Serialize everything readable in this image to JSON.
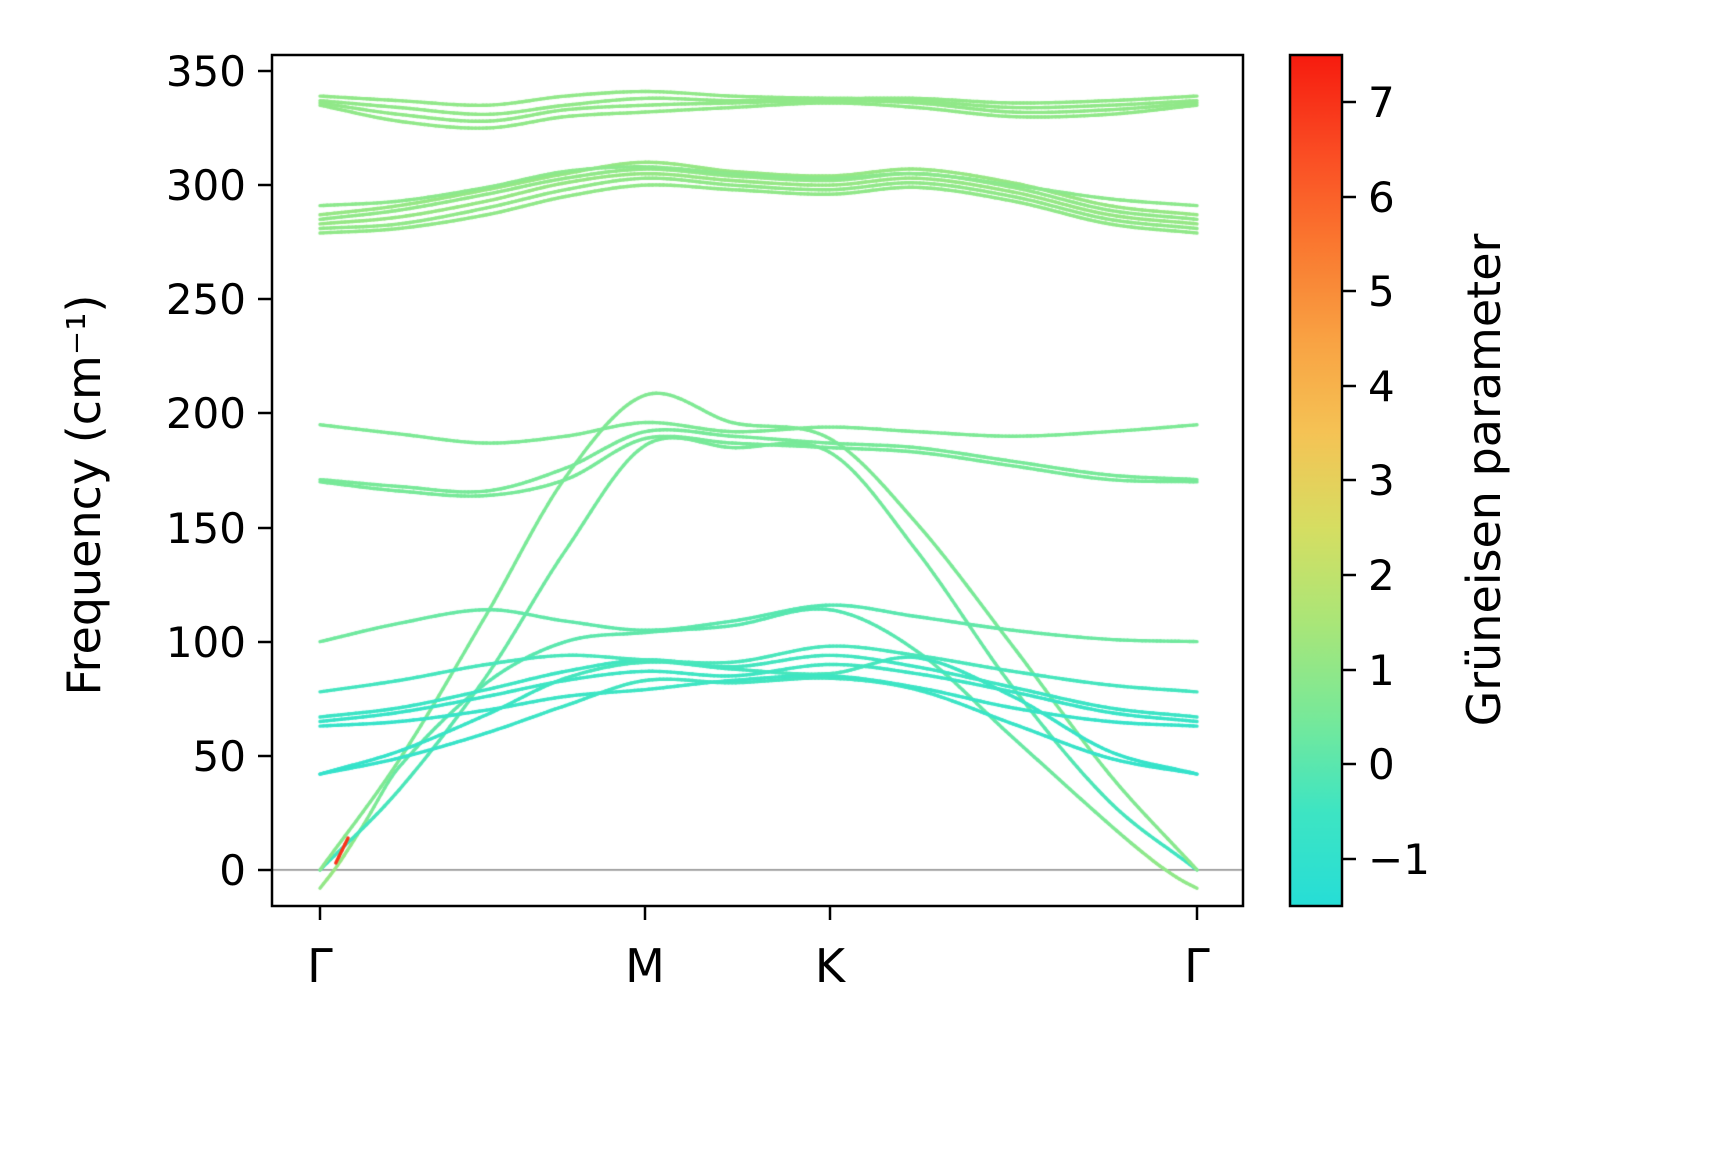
{
  "figure": {
    "background": "#ffffff",
    "frame_color": "#000000"
  },
  "chart_data": {
    "type": "line",
    "title": "",
    "xlabel": "",
    "ylabel": "Frequency (cm⁻¹)",
    "x_tick_labels": [
      "Γ",
      "M",
      "K",
      "Γ"
    ],
    "x_tick_positions": [
      0,
      0.371,
      0.581,
      1
    ],
    "y_ticks": [
      0,
      50,
      100,
      150,
      200,
      250,
      300,
      350
    ],
    "y_tick_labels": [
      "0",
      "50",
      "100",
      "150",
      "200",
      "250",
      "300",
      "350"
    ],
    "ylim": [
      -15.8,
      357
    ],
    "grid": false,
    "legend": "none",
    "zero_line": {
      "y": 0,
      "color": "#999999"
    },
    "colorbar": {
      "label": "Grüneisen parameter",
      "ticks": [
        7,
        6,
        5,
        4,
        3,
        2,
        1,
        0,
        -1
      ],
      "tick_labels": [
        "7",
        "6",
        "5",
        "4",
        "3",
        "2",
        "1",
        "0",
        "−1"
      ],
      "vmin": -1.5,
      "vmax": 7.5,
      "stops": [
        {
          "v": -1.5,
          "c": [
            38,
            222,
            215
          ]
        },
        {
          "v": -0.5,
          "c": [
            62,
            229,
            195
          ]
        },
        {
          "v": 0.5,
          "c": [
            120,
            233,
            153
          ]
        },
        {
          "v": 1.5,
          "c": [
            170,
            230,
            120
          ]
        },
        {
          "v": 2.5,
          "c": [
            214,
            222,
            98
          ]
        },
        {
          "v": 3.5,
          "c": [
            245,
            195,
            85
          ]
        },
        {
          "v": 4.5,
          "c": [
            249,
            162,
            67
          ]
        },
        {
          "v": 5.5,
          "c": [
            250,
            120,
            48
          ]
        },
        {
          "v": 6.5,
          "c": [
            250,
            75,
            35
          ]
        },
        {
          "v": 7.5,
          "c": [
            247,
            28,
            15
          ]
        }
      ]
    },
    "bands": [
      {
        "name": "za-acoustic",
        "u": [
          0,
          0.02,
          0.05,
          0.09,
          0.19,
          0.28,
          0.371,
          0.47,
          0.581,
          0.68,
          0.79,
          0.9,
          0.95,
          0.98,
          1
        ],
        "f": [
          -8,
          2,
          20,
          45,
          82,
          100,
          104,
          107,
          114,
          96,
          58,
          20,
          4,
          -4,
          -8
        ],
        "g": [
          1,
          1.2,
          0.8,
          0.2,
          0,
          0,
          0.1,
          0,
          -0.1,
          0,
          0.2,
          0.6,
          1,
          1,
          1
        ]
      },
      {
        "name": "ta-acoustic",
        "u": [
          0,
          0.09,
          0.19,
          0.28,
          0.371,
          0.47,
          0.581,
          0.68,
          0.79,
          0.9,
          1
        ],
        "f": [
          0,
          35,
          85,
          140,
          186,
          185,
          183,
          140,
          80,
          30,
          0
        ],
        "g": [
          -0.5,
          -0.3,
          0.2,
          0.4,
          0.5,
          0.5,
          0.5,
          0.4,
          0.2,
          -0.3,
          -0.5
        ]
      },
      {
        "name": "la-acoustic",
        "u": [
          0,
          0.09,
          0.19,
          0.28,
          0.371,
          0.47,
          0.581,
          0.68,
          0.79,
          0.9,
          1
        ],
        "f": [
          0,
          48,
          112,
          172,
          208,
          196,
          189,
          152,
          98,
          42,
          0
        ],
        "g": [
          0.9,
          0.6,
          0.5,
          0.6,
          0.7,
          0.6,
          0.6,
          0.6,
          0.5,
          0.6,
          0.9
        ]
      },
      {
        "name": "optical-42a",
        "u": [
          0,
          0.09,
          0.19,
          0.28,
          0.371,
          0.47,
          0.581,
          0.68,
          0.79,
          0.9,
          1
        ],
        "f": [
          42,
          52,
          68,
          84,
          91,
          88,
          86,
          93,
          76,
          52,
          42
        ],
        "g": [
          -0.9,
          -0.8,
          -0.6,
          -0.4,
          -0.3,
          -0.4,
          -0.3,
          -0.4,
          -0.6,
          -0.8,
          -0.9
        ]
      },
      {
        "name": "optical-42b",
        "u": [
          0,
          0.09,
          0.19,
          0.28,
          0.371,
          0.47,
          0.581,
          0.68,
          0.79,
          0.9,
          1
        ],
        "f": [
          42,
          49,
          60,
          72,
          83,
          82,
          84,
          79,
          64,
          49,
          42
        ],
        "g": [
          -0.9,
          -0.8,
          -0.7,
          -0.5,
          -0.4,
          -0.4,
          -0.4,
          -0.5,
          -0.7,
          -0.8,
          -0.9
        ]
      },
      {
        "name": "optical-63",
        "u": [
          0,
          0.09,
          0.19,
          0.28,
          0.371,
          0.47,
          0.581,
          0.68,
          0.79,
          0.9,
          1
        ],
        "f": [
          63,
          65,
          70,
          76,
          79,
          83,
          85,
          80,
          71,
          65,
          63
        ],
        "g": [
          -0.8,
          -0.8,
          -0.7,
          -0.6,
          -0.5,
          -0.5,
          -0.5,
          -0.6,
          -0.7,
          -0.8,
          -0.8
        ]
      },
      {
        "name": "optical-65",
        "u": [
          0,
          0.09,
          0.19,
          0.28,
          0.371,
          0.47,
          0.581,
          0.68,
          0.79,
          0.9,
          1
        ],
        "f": [
          65,
          69,
          76,
          83,
          87,
          85,
          90,
          86,
          78,
          69,
          65
        ],
        "g": [
          -0.7,
          -0.7,
          -0.6,
          -0.5,
          -0.5,
          -0.5,
          -0.4,
          -0.5,
          -0.6,
          -0.7,
          -0.7
        ]
      },
      {
        "name": "optical-67",
        "u": [
          0,
          0.09,
          0.19,
          0.28,
          0.371,
          0.47,
          0.581,
          0.68,
          0.79,
          0.9,
          1
        ],
        "f": [
          67,
          71,
          79,
          87,
          92,
          89,
          94,
          89,
          80,
          71,
          67
        ],
        "g": [
          -0.6,
          -0.6,
          -0.5,
          -0.5,
          -0.4,
          -0.4,
          -0.4,
          -0.5,
          -0.5,
          -0.6,
          -0.6
        ]
      },
      {
        "name": "optical-78",
        "u": [
          0,
          0.09,
          0.19,
          0.28,
          0.371,
          0.47,
          0.581,
          0.68,
          0.79,
          0.9,
          1
        ],
        "f": [
          78,
          83,
          90,
          94,
          92,
          91,
          98,
          94,
          87,
          81,
          78
        ],
        "g": [
          -0.4,
          -0.4,
          -0.3,
          -0.3,
          -0.3,
          -0.3,
          -0.3,
          -0.3,
          -0.3,
          -0.4,
          -0.4
        ]
      },
      {
        "name": "optical-100",
        "u": [
          0,
          0.09,
          0.19,
          0.28,
          0.371,
          0.47,
          0.581,
          0.68,
          0.79,
          0.9,
          1
        ],
        "f": [
          100,
          108,
          114,
          109,
          105,
          109,
          116,
          111,
          105,
          101,
          100
        ],
        "g": [
          0.4,
          0.3,
          0.2,
          0.1,
          0.1,
          0,
          -0.1,
          0,
          0.2,
          0.3,
          0.4
        ]
      },
      {
        "name": "optical-170a",
        "u": [
          0,
          0.09,
          0.19,
          0.28,
          0.371,
          0.47,
          0.581,
          0.68,
          0.79,
          0.9,
          1
        ],
        "f": [
          170,
          166,
          164,
          171,
          189,
          187,
          185,
          183,
          177,
          171,
          170
        ],
        "g": [
          0.5,
          0.5,
          0.5,
          0.5,
          0.5,
          0.5,
          0.5,
          0.5,
          0.5,
          0.5,
          0.5
        ]
      },
      {
        "name": "optical-170b",
        "u": [
          0,
          0.09,
          0.19,
          0.28,
          0.371,
          0.47,
          0.581,
          0.68,
          0.79,
          0.9,
          1
        ],
        "f": [
          171,
          168,
          166,
          176,
          192,
          190,
          187,
          185,
          179,
          173,
          171
        ],
        "g": [
          0.5,
          0.5,
          0.5,
          0.5,
          0.5,
          0.5,
          0.5,
          0.5,
          0.5,
          0.5,
          0.5
        ]
      },
      {
        "name": "optical-195",
        "u": [
          0,
          0.09,
          0.19,
          0.28,
          0.371,
          0.47,
          0.581,
          0.68,
          0.79,
          0.9,
          1
        ],
        "f": [
          195,
          191,
          187,
          190,
          196,
          192,
          194,
          192,
          190,
          192,
          195
        ],
        "g": [
          0.6,
          0.6,
          0.6,
          0.6,
          0.6,
          0.6,
          0.6,
          0.6,
          0.6,
          0.6,
          0.6
        ]
      },
      {
        "name": "optical-279",
        "u": [
          0,
          0.09,
          0.19,
          0.28,
          0.371,
          0.47,
          0.581,
          0.68,
          0.79,
          0.9,
          1
        ],
        "f": [
          279,
          281,
          287,
          295,
          300,
          298,
          296,
          299,
          293,
          283,
          279
        ],
        "g": [
          1,
          1,
          1,
          1,
          1,
          1,
          1,
          1,
          1,
          1,
          1
        ]
      },
      {
        "name": "optical-281",
        "u": [
          0,
          0.09,
          0.19,
          0.28,
          0.371,
          0.47,
          0.581,
          0.68,
          0.79,
          0.9,
          1
        ],
        "f": [
          281,
          283,
          290,
          298,
          303,
          300,
          298,
          301,
          295,
          285,
          281
        ],
        "g": [
          1,
          1,
          1,
          1,
          1,
          1,
          1,
          1,
          1,
          1,
          1
        ]
      },
      {
        "name": "optical-283",
        "u": [
          0,
          0.09,
          0.19,
          0.28,
          0.371,
          0.47,
          0.581,
          0.68,
          0.79,
          0.9,
          1
        ],
        "f": [
          283,
          286,
          293,
          301,
          305,
          302,
          300,
          303,
          297,
          287,
          283
        ],
        "g": [
          1.1,
          1.1,
          1.1,
          1.1,
          1.1,
          1.1,
          1.1,
          1.1,
          1.1,
          1.1,
          1.1
        ]
      },
      {
        "name": "optical-285",
        "u": [
          0,
          0.09,
          0.19,
          0.28,
          0.371,
          0.47,
          0.581,
          0.68,
          0.79,
          0.9,
          1
        ],
        "f": [
          285,
          289,
          296,
          303,
          307,
          304,
          302,
          305,
          299,
          289,
          285
        ],
        "g": [
          1,
          1,
          1,
          1,
          1,
          1,
          1,
          1,
          1,
          1,
          1
        ]
      },
      {
        "name": "optical-287",
        "u": [
          0,
          0.09,
          0.19,
          0.28,
          0.371,
          0.47,
          0.581,
          0.68,
          0.79,
          0.9,
          1
        ],
        "f": [
          287,
          291,
          298,
          305,
          310,
          306,
          304,
          307,
          301,
          291,
          287
        ],
        "g": [
          1.1,
          1.1,
          1.1,
          1.1,
          1.1,
          1.1,
          1.1,
          1.1,
          1.1,
          1.1,
          1.1
        ]
      },
      {
        "name": "optical-291",
        "u": [
          0,
          0.09,
          0.19,
          0.28,
          0.371,
          0.47,
          0.581,
          0.68,
          0.79,
          0.9,
          1
        ],
        "f": [
          291,
          293,
          299,
          306,
          308,
          305,
          303,
          305,
          300,
          294,
          291
        ],
        "g": [
          0.9,
          0.9,
          0.9,
          0.9,
          0.9,
          0.9,
          0.9,
          0.9,
          0.9,
          0.9,
          0.9
        ]
      },
      {
        "name": "optical-335",
        "u": [
          0,
          0.09,
          0.19,
          0.28,
          0.371,
          0.47,
          0.581,
          0.68,
          0.79,
          0.9,
          1
        ],
        "f": [
          335,
          328,
          325,
          330,
          332,
          334,
          336,
          334,
          330,
          331,
          335
        ],
        "g": [
          1,
          1,
          1,
          1,
          1,
          1,
          1,
          1,
          1,
          1,
          1
        ]
      },
      {
        "name": "optical-336",
        "u": [
          0,
          0.09,
          0.19,
          0.28,
          0.371,
          0.47,
          0.581,
          0.68,
          0.79,
          0.9,
          1
        ],
        "f": [
          336,
          331,
          328,
          333,
          335,
          336,
          337,
          336,
          332,
          333,
          336
        ],
        "g": [
          1,
          1,
          1,
          1,
          1,
          1,
          1,
          1,
          1,
          1,
          1
        ]
      },
      {
        "name": "optical-337",
        "u": [
          0,
          0.09,
          0.19,
          0.28,
          0.371,
          0.47,
          0.581,
          0.68,
          0.79,
          0.9,
          1
        ],
        "f": [
          337,
          334,
          331,
          335,
          338,
          337,
          338,
          337,
          334,
          335,
          337
        ],
        "g": [
          1,
          1,
          1,
          1,
          1,
          1,
          1,
          1,
          1,
          1,
          1
        ]
      },
      {
        "name": "optical-339",
        "u": [
          0,
          0.09,
          0.19,
          0.28,
          0.371,
          0.47,
          0.581,
          0.68,
          0.79,
          0.9,
          1
        ],
        "f": [
          339,
          337,
          335,
          339,
          341,
          339,
          338,
          338,
          336,
          337,
          339
        ],
        "g": [
          1,
          1,
          1,
          1,
          1,
          1,
          1,
          1,
          1,
          1,
          1
        ]
      },
      {
        "name": "gamma-red-segment",
        "u": [
          0.018,
          0.032
        ],
        "f": [
          3,
          14
        ],
        "g": [
          7,
          7
        ]
      }
    ]
  }
}
